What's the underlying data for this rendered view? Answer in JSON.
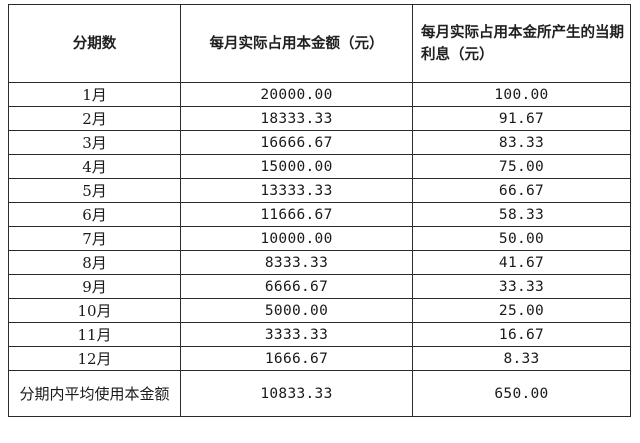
{
  "table": {
    "headers": {
      "period": "分期数",
      "principal": "每月实际占用本金额（元）",
      "interest": "每月实际占用本金所产生的当期利息（元）"
    },
    "rows": [
      {
        "period": "1月",
        "principal": "20000.00",
        "interest": "100.00"
      },
      {
        "period": "2月",
        "principal": "18333.33",
        "interest": "91.67"
      },
      {
        "period": "3月",
        "principal": "16666.67",
        "interest": "83.33"
      },
      {
        "period": "4月",
        "principal": "15000.00",
        "interest": "75.00"
      },
      {
        "period": "5月",
        "principal": "13333.33",
        "interest": "66.67"
      },
      {
        "period": "6月",
        "principal": "11666.67",
        "interest": "58.33"
      },
      {
        "period": "7月",
        "principal": "10000.00",
        "interest": "50.00"
      },
      {
        "period": "8月",
        "principal": "8333.33",
        "interest": "41.67"
      },
      {
        "period": "9月",
        "principal": "6666.67",
        "interest": "33.33"
      },
      {
        "period": "10月",
        "principal": "5000.00",
        "interest": "25.00"
      },
      {
        "period": "11月",
        "principal": "3333.33",
        "interest": "16.67"
      },
      {
        "period": "12月",
        "principal": "1666.67",
        "interest": "8.33"
      }
    ],
    "summary": {
      "label": "分期内平均使用本金额",
      "principal": "10833.33",
      "interest": "650.00"
    }
  }
}
